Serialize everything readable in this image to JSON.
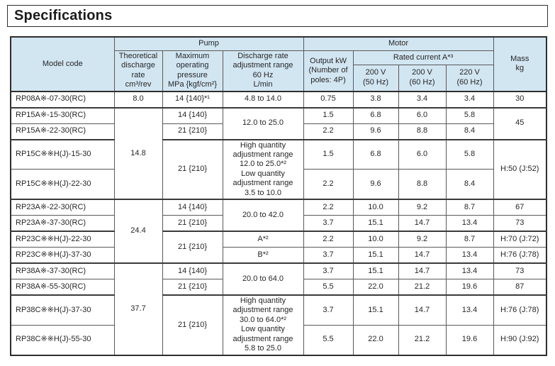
{
  "title": "Specifications",
  "colors": {
    "header_bg": "#d2e6f2",
    "border_thin": "#595959",
    "border_thick": "#2e2e2e",
    "text": "#262626"
  },
  "table": {
    "header": {
      "model_code": "Model code",
      "pump_group": "Pump",
      "motor_group": "Motor",
      "theoretical": "Theoretical\ndischarge\nrate\ncm³/rev",
      "pressure": "Maximum\noperating\npressure\nMPa {kgf/cm²}",
      "discharge_range": "Discharge rate\nadjustment range\n60 Hz\nL/min",
      "output": "Output kW\n(Number of\npoles: 4P)",
      "rated_current": "Rated current A*³",
      "v200_50": "200 V\n(50 Hz)",
      "v200_60": "200 V\n(60 Hz)",
      "v220_60": "220 V\n(60 Hz)",
      "mass": "Mass\nkg"
    },
    "rows": [
      {
        "group": "rp08a",
        "cells": [
          {
            "t": "RP08A※-07-30(RC)",
            "model": true
          },
          {
            "t": "8.0"
          },
          {
            "t": "14 {140}*¹"
          },
          {
            "t": "4.8 to 14.0"
          },
          {
            "t": "0.75"
          },
          {
            "t": "3.8"
          },
          {
            "t": "3.4"
          },
          {
            "t": "3.4"
          },
          {
            "t": "30"
          }
        ]
      },
      {
        "group": "rp15a",
        "cells": [
          {
            "t": "RP15A※-15-30(RC)",
            "model": true
          },
          {
            "t": "14.8",
            "rs": 4
          },
          {
            "t": "14 {140}"
          },
          {
            "t": "12.0 to 25.0",
            "rs": 2
          },
          {
            "t": "1.5"
          },
          {
            "t": "6.8"
          },
          {
            "t": "6.0"
          },
          {
            "t": "5.8"
          },
          {
            "t": "45",
            "rs": 2
          }
        ]
      },
      {
        "group": "rp15a",
        "cells": [
          {
            "t": "RP15A※-22-30(RC)",
            "model": true
          },
          {
            "t": "21 {210}"
          },
          {
            "t": "2.2"
          },
          {
            "t": "9.6"
          },
          {
            "t": "8.8"
          },
          {
            "t": "8.4"
          }
        ]
      },
      {
        "group": "rp15c",
        "cells": [
          {
            "t": "RP15C※※H(J)-15-30",
            "model": true
          },
          {
            "t": "21 {210}",
            "rs": 2
          },
          {
            "t": "High quantity adjustment range\n12.0 to 25.0*²\nLow quantity adjustment range\n3.5 to 10.0",
            "rs": 2
          },
          {
            "t": "1.5"
          },
          {
            "t": "6.8"
          },
          {
            "t": "6.0"
          },
          {
            "t": "5.8"
          },
          {
            "t": "H:50 (J:52)",
            "rs": 2
          }
        ]
      },
      {
        "group": "rp15c",
        "cells": [
          {
            "t": "RP15C※※H(J)-22-30",
            "model": true
          },
          {
            "t": "2.2"
          },
          {
            "t": "9.6"
          },
          {
            "t": "8.8"
          },
          {
            "t": "8.4"
          }
        ]
      },
      {
        "group": "rp23a",
        "cells": [
          {
            "t": "RP23A※-22-30(RC)",
            "model": true
          },
          {
            "t": "24.4",
            "rs": 4
          },
          {
            "t": "14 {140}"
          },
          {
            "t": "20.0 to 42.0",
            "rs": 2
          },
          {
            "t": "2.2"
          },
          {
            "t": "10.0"
          },
          {
            "t": "9.2"
          },
          {
            "t": "8.7"
          },
          {
            "t": "67"
          }
        ]
      },
      {
        "group": "rp23a",
        "cells": [
          {
            "t": "RP23A※-37-30(RC)",
            "model": true
          },
          {
            "t": "21 {210}"
          },
          {
            "t": "3.7"
          },
          {
            "t": "15.1"
          },
          {
            "t": "14.7"
          },
          {
            "t": "13.4"
          },
          {
            "t": "73"
          }
        ]
      },
      {
        "group": "rp23c",
        "cells": [
          {
            "t": "RP23C※※H(J)-22-30",
            "model": true
          },
          {
            "t": "21 {210}",
            "rs": 2
          },
          {
            "t": "A*²"
          },
          {
            "t": "2.2"
          },
          {
            "t": "10.0"
          },
          {
            "t": "9.2"
          },
          {
            "t": "8.7"
          },
          {
            "t": "H:70 (J:72)"
          }
        ]
      },
      {
        "group": "rp23c",
        "cells": [
          {
            "t": "RP23C※※H(J)-37-30",
            "model": true
          },
          {
            "t": "B*²"
          },
          {
            "t": "3.7"
          },
          {
            "t": "15.1"
          },
          {
            "t": "14.7"
          },
          {
            "t": "13.4"
          },
          {
            "t": "H:76 (J:78)"
          }
        ]
      },
      {
        "group": "rp38a",
        "cells": [
          {
            "t": "RP38A※-37-30(RC)",
            "model": true
          },
          {
            "t": "37.7",
            "rs": 4
          },
          {
            "t": "14 {140}"
          },
          {
            "t": "20.0 to 64.0",
            "rs": 2
          },
          {
            "t": "3.7"
          },
          {
            "t": "15.1"
          },
          {
            "t": "14.7"
          },
          {
            "t": "13.4"
          },
          {
            "t": "73"
          }
        ]
      },
      {
        "group": "rp38a",
        "cells": [
          {
            "t": "RP38A※-55-30(RC)",
            "model": true
          },
          {
            "t": "21 {210}"
          },
          {
            "t": "5.5"
          },
          {
            "t": "22.0"
          },
          {
            "t": "21.2"
          },
          {
            "t": "19.6"
          },
          {
            "t": "87"
          }
        ]
      },
      {
        "group": "rp38c",
        "cells": [
          {
            "t": "RP38C※※H(J)-37-30",
            "model": true
          },
          {
            "t": "21 {210}",
            "rs": 2
          },
          {
            "t": "High quantity adjustment range\n30.0 to 64.0*²\nLow quantity adjustment range\n5.8 to 25.0",
            "rs": 2
          },
          {
            "t": "3.7"
          },
          {
            "t": "15.1"
          },
          {
            "t": "14.7"
          },
          {
            "t": "13.4"
          },
          {
            "t": "H:76 (J:78)"
          }
        ]
      },
      {
        "group": "rp38c",
        "cells": [
          {
            "t": "RP38C※※H(J)-55-30",
            "model": true
          },
          {
            "t": "5.5"
          },
          {
            "t": "22.0"
          },
          {
            "t": "21.2"
          },
          {
            "t": "19.6"
          },
          {
            "t": "H:90 (J:92)"
          }
        ]
      }
    ]
  }
}
